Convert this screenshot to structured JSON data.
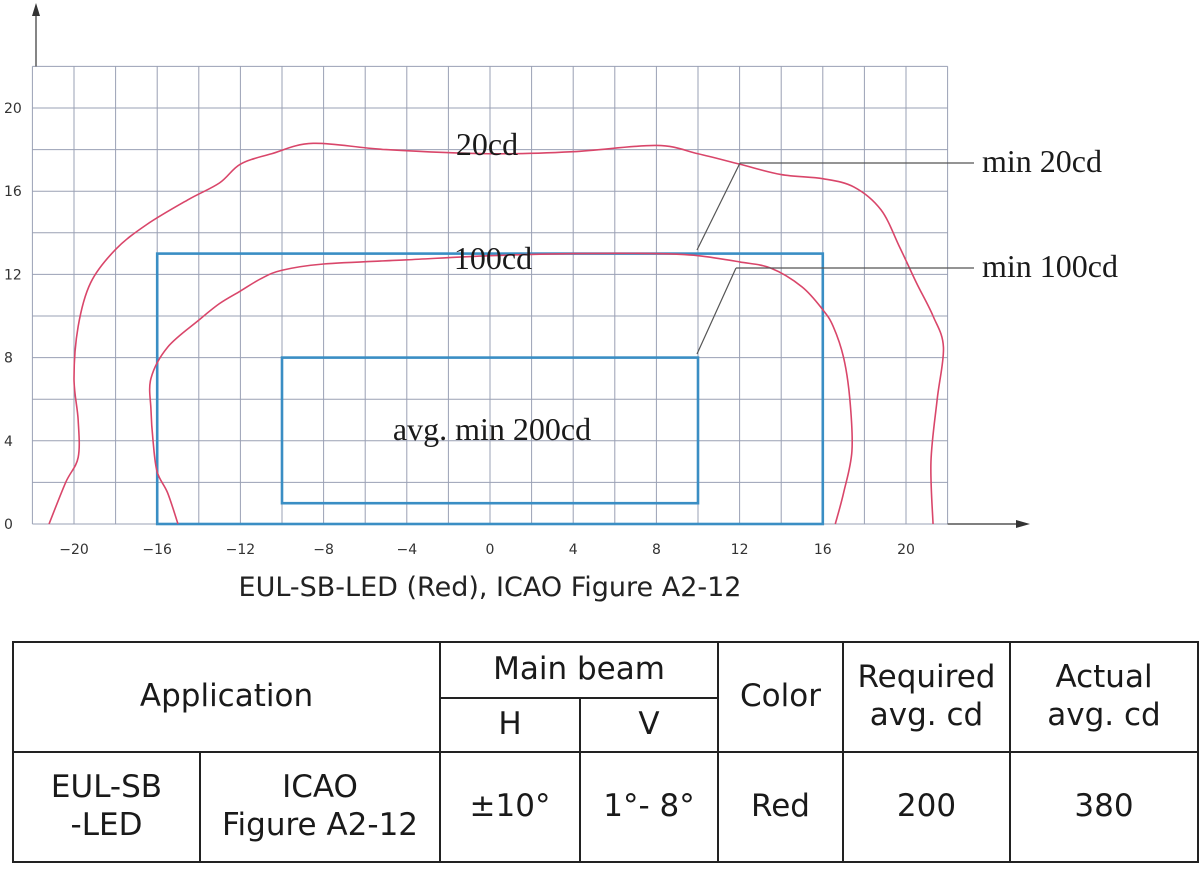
{
  "chart_data": {
    "type": "line",
    "title": "",
    "caption": "EUL-SB-LED (Red), ICAO Figure A2-12",
    "xlabel": "",
    "ylabel": "",
    "xlim": [
      -22,
      22
    ],
    "ylim": [
      0,
      22
    ],
    "x_ticks": [
      "−20",
      "−16",
      "−12",
      "−8",
      "−4",
      "0",
      "4",
      "8",
      "12",
      "16",
      "20"
    ],
    "x_tick_values": [
      -20,
      -16,
      -12,
      -8,
      -4,
      0,
      4,
      8,
      12,
      16,
      20
    ],
    "y_ticks": [
      "0",
      "4",
      "8",
      "12",
      "16",
      "20"
    ],
    "y_tick_values": [
      0,
      4,
      8,
      12,
      16,
      20
    ],
    "grid": true,
    "grid_step": 2,
    "colors": {
      "contour": "#d9466a",
      "box": "#3a8ec4",
      "grid": "#9aa0b4"
    },
    "series": [
      {
        "name": "20cd",
        "points": [
          [
            -21.2,
            0
          ],
          [
            -20.4,
            2
          ],
          [
            -19.8,
            3.2
          ],
          [
            -19.8,
            5
          ],
          [
            -20,
            7
          ],
          [
            -19.8,
            9.5
          ],
          [
            -19.2,
            11.6
          ],
          [
            -18,
            13.2
          ],
          [
            -16.5,
            14.4
          ],
          [
            -14.5,
            15.6
          ],
          [
            -13,
            16.4
          ],
          [
            -12,
            17.3
          ],
          [
            -10.5,
            17.8
          ],
          [
            -8.5,
            18.3
          ],
          [
            -5,
            18
          ],
          [
            0,
            17.8
          ],
          [
            4,
            17.9
          ],
          [
            8,
            18.2
          ],
          [
            10,
            17.8
          ],
          [
            12,
            17.3
          ],
          [
            14,
            16.8
          ],
          [
            16,
            16.6
          ],
          [
            17.5,
            16.2
          ],
          [
            18.8,
            15.1
          ],
          [
            19.7,
            13.3
          ],
          [
            20.5,
            11.6
          ],
          [
            21.3,
            10
          ],
          [
            21.8,
            8.5
          ],
          [
            21.5,
            6
          ],
          [
            21.2,
            3
          ],
          [
            21.3,
            0
          ]
        ]
      },
      {
        "name": "100cd",
        "points": [
          [
            -15,
            0
          ],
          [
            -15.5,
            1.5
          ],
          [
            -16,
            2.5
          ],
          [
            -16.2,
            4
          ],
          [
            -16.3,
            5.5
          ],
          [
            -16.3,
            7
          ],
          [
            -15.5,
            8.5
          ],
          [
            -14,
            9.8
          ],
          [
            -13,
            10.6
          ],
          [
            -12,
            11.2
          ],
          [
            -11,
            11.8
          ],
          [
            -10,
            12.2
          ],
          [
            -8,
            12.5
          ],
          [
            -4,
            12.7
          ],
          [
            0,
            12.9
          ],
          [
            4,
            13
          ],
          [
            8,
            13
          ],
          [
            10,
            12.9
          ],
          [
            12,
            12.6
          ],
          [
            13.5,
            12.3
          ],
          [
            15,
            11.4
          ],
          [
            16,
            10.3
          ],
          [
            16.5,
            9.5
          ],
          [
            17,
            8
          ],
          [
            17.3,
            6
          ],
          [
            17.4,
            3.5
          ],
          [
            17,
            1.5
          ],
          [
            16.6,
            0
          ]
        ]
      }
    ],
    "boxes": [
      {
        "name": "min 20cd",
        "x": [
          -16,
          16
        ],
        "y": [
          0,
          13
        ]
      },
      {
        "name": "avg. min 200cd",
        "x": [
          -10,
          10
        ],
        "y": [
          1,
          8
        ]
      }
    ],
    "annotations": {
      "label_20cd": "20cd",
      "label_100cd": "100cd",
      "label_avg": "avg. min 200cd",
      "callout_min20": "min 20cd",
      "callout_min100": "min 100cd"
    }
  },
  "table": {
    "headers": {
      "application": "Application",
      "main_beam": "Main beam",
      "h": "H",
      "v": "V",
      "color": "Color",
      "required_line1": "Required",
      "required_line2": "avg. cd",
      "actual_line1": "Actual",
      "actual_line2": "avg. cd"
    },
    "row": {
      "product_line1": "EUL-SB",
      "product_line2": "-LED",
      "standard_line1": "ICAO",
      "standard_line2": "Figure A2-12",
      "h": "±10°",
      "v": "1°- 8°",
      "color": "Red",
      "required": "200",
      "actual": "380"
    }
  }
}
